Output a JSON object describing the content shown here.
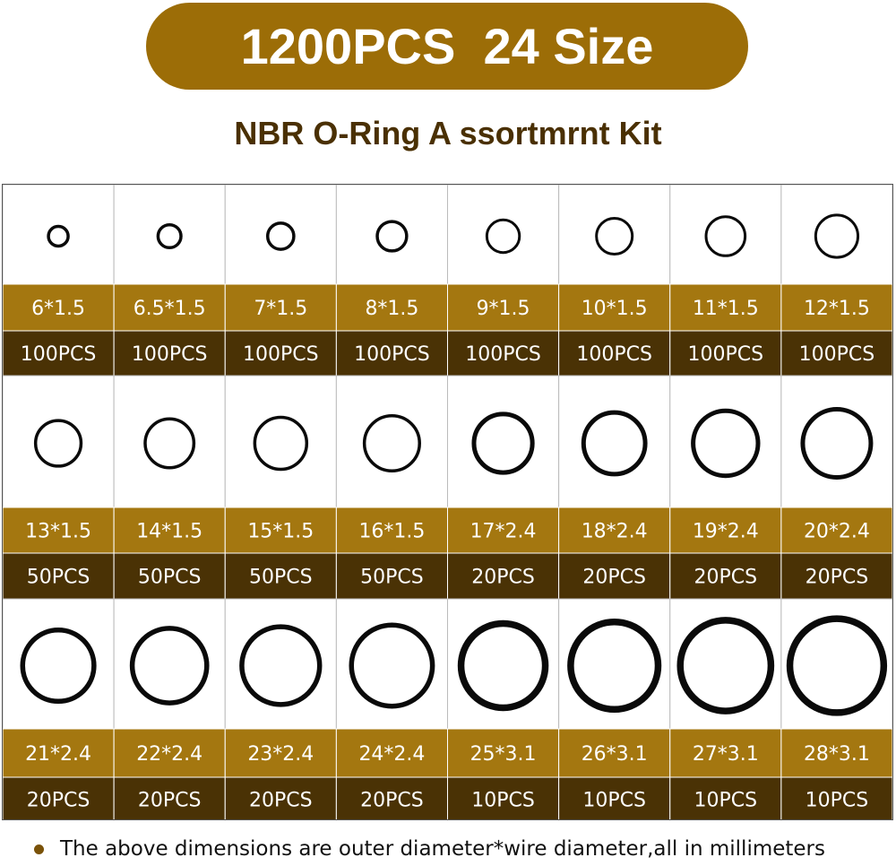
{
  "header": {
    "title": "1200PCS  24 Size",
    "subtitle": "NBR O-Ring A ssortmrnt Kit"
  },
  "items": [
    {
      "size": "6*1.5",
      "count": "100PCS"
    },
    {
      "size": "6.5*1.5",
      "count": "100PCS"
    },
    {
      "size": "7*1.5",
      "count": "100PCS"
    },
    {
      "size": "8*1.5",
      "count": "100PCS"
    },
    {
      "size": "9*1.5",
      "count": "100PCS"
    },
    {
      "size": "10*1.5",
      "count": "100PCS"
    },
    {
      "size": "11*1.5",
      "count": "100PCS"
    },
    {
      "size": "12*1.5",
      "count": "100PCS"
    },
    {
      "size": "13*1.5",
      "count": "50PCS"
    },
    {
      "size": "14*1.5",
      "count": "50PCS"
    },
    {
      "size": "15*1.5",
      "count": "50PCS"
    },
    {
      "size": "16*1.5",
      "count": "50PCS"
    },
    {
      "size": "17*2.4",
      "count": "20PCS"
    },
    {
      "size": "18*2.4",
      "count": "20PCS"
    },
    {
      "size": "19*2.4",
      "count": "20PCS"
    },
    {
      "size": "20*2.4",
      "count": "20PCS"
    },
    {
      "size": "21*2.4",
      "count": "20PCS"
    },
    {
      "size": "22*2.4",
      "count": "20PCS"
    },
    {
      "size": "23*2.4",
      "count": "20PCS"
    },
    {
      "size": "24*2.4",
      "count": "20PCS"
    },
    {
      "size": "25*3.1",
      "count": "10PCS"
    },
    {
      "size": "26*3.1",
      "count": "10PCS"
    },
    {
      "size": "27*3.1",
      "count": "10PCS"
    },
    {
      "size": "28*3.1",
      "count": "10PCS"
    }
  ],
  "footnote": "The above dimensions are outer diameter*wire diameter,all in millimeters"
}
